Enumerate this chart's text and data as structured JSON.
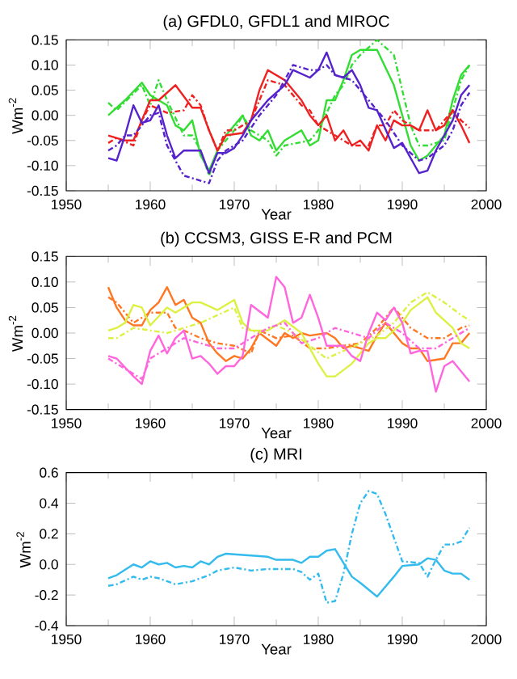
{
  "chart_data": [
    {
      "type": "line",
      "title": "(a) GFDL0, GFDL1 and MIROC",
      "xlabel": "Year",
      "ylabel": "Wm$^{-2}$",
      "xlim": [
        1950,
        2000
      ],
      "xticks": [
        1950,
        1960,
        1970,
        1980,
        1990,
        2000
      ],
      "ylim": [
        -0.15,
        0.15
      ],
      "yticks": [
        {
          "value": -0.15,
          "label": "-0.15"
        },
        {
          "value": -0.1,
          "label": "-0.10"
        },
        {
          "value": -0.05,
          "label": "-0.05"
        },
        {
          "value": 0,
          "label": "0.00"
        },
        {
          "value": 0.05,
          "label": "0.05"
        },
        {
          "value": 0.1,
          "label": "0.10"
        },
        {
          "value": 0.15,
          "label": "0.15"
        }
      ],
      "series": [
        {
          "color": "#33dd33",
          "line_style": "solid",
          "x": [
            1955,
            1957,
            1959,
            1960,
            1962,
            1963,
            1964,
            1965,
            1966,
            1967,
            1968,
            1969,
            1971,
            1972,
            1973,
            1974,
            1975,
            1976,
            1978,
            1979,
            1980,
            1981,
            1982,
            1983,
            1984,
            1985,
            1987,
            1989,
            1990,
            1991,
            1992,
            1993,
            1995,
            1996,
            1997,
            1998
          ],
          "values": [
            0.0,
            0.03,
            0.065,
            0.04,
            0.02,
            -0.02,
            -0.03,
            -0.01,
            -0.08,
            -0.11,
            -0.07,
            -0.04,
            0.0,
            -0.04,
            -0.05,
            -0.03,
            -0.07,
            -0.05,
            -0.03,
            -0.06,
            -0.05,
            0.03,
            0.03,
            0.07,
            0.12,
            0.13,
            0.13,
            0.06,
            0.0,
            -0.06,
            -0.09,
            -0.08,
            -0.04,
            0.03,
            0.08,
            0.1
          ]
        },
        {
          "color": "#33dd33",
          "line_style": "dashed",
          "x": [
            1955,
            1956,
            1959,
            1960,
            1961,
            1962,
            1964,
            1965,
            1966,
            1967,
            1968,
            1970,
            1971,
            1972,
            1974,
            1975,
            1976,
            1979,
            1980,
            1982,
            1983,
            1984,
            1985,
            1987,
            1989,
            1990,
            1991,
            1992,
            1993,
            1995,
            1996,
            1997,
            1998
          ],
          "values": [
            0.025,
            0.01,
            0.06,
            0.02,
            0.07,
            0.03,
            -0.04,
            -0.04,
            -0.07,
            -0.12,
            -0.07,
            -0.03,
            0.0,
            -0.03,
            -0.05,
            -0.08,
            -0.06,
            -0.05,
            -0.03,
            0.04,
            0.06,
            0.1,
            0.12,
            0.15,
            0.12,
            0.05,
            -0.02,
            -0.06,
            -0.06,
            -0.05,
            0.01,
            0.07,
            0.1
          ]
        },
        {
          "color": "#ee2222",
          "line_style": "solid",
          "x": [
            1955,
            1957,
            1958,
            1959,
            1960,
            1961,
            1963,
            1965,
            1966,
            1967,
            1968,
            1969,
            1971,
            1972,
            1973,
            1974,
            1976,
            1978,
            1979,
            1980,
            1981,
            1982,
            1983,
            1984,
            1985,
            1986,
            1987,
            1988,
            1989,
            1990,
            1991,
            1992,
            1993,
            1994,
            1995,
            1996,
            1997,
            1998
          ],
          "values": [
            -0.04,
            -0.05,
            -0.05,
            -0.01,
            0.03,
            0.03,
            0.06,
            0.015,
            0.015,
            -0.03,
            -0.07,
            -0.04,
            -0.035,
            -0.01,
            0.05,
            0.09,
            0.07,
            0.03,
            0.0,
            -0.02,
            0.0,
            -0.05,
            -0.03,
            -0.06,
            -0.05,
            -0.07,
            -0.02,
            -0.05,
            -0.01,
            -0.02,
            -0.02,
            -0.03,
            0.01,
            -0.03,
            -0.02,
            0.01,
            -0.02,
            -0.055
          ]
        },
        {
          "color": "#ee2222",
          "line_style": "dashed",
          "x": [
            1955,
            1956,
            1958,
            1959,
            1960,
            1962,
            1964,
            1965,
            1966,
            1967,
            1968,
            1969,
            1970,
            1972,
            1973,
            1974,
            1976,
            1978,
            1979,
            1980,
            1982,
            1984,
            1986,
            1987,
            1988,
            1989,
            1990,
            1992,
            1994,
            1996,
            1997,
            1998
          ],
          "values": [
            -0.055,
            -0.045,
            -0.06,
            -0.01,
            0.02,
            0.005,
            0.01,
            0.04,
            0.02,
            -0.03,
            -0.07,
            -0.03,
            -0.03,
            -0.01,
            0.03,
            0.07,
            0.06,
            0.02,
            0.01,
            -0.02,
            -0.04,
            -0.06,
            -0.06,
            -0.02,
            -0.02,
            0.01,
            -0.01,
            -0.03,
            -0.03,
            0.01,
            -0.01,
            -0.025
          ]
        },
        {
          "color": "#5522cc",
          "line_style": "solid",
          "x": [
            1955,
            1956,
            1957,
            1958,
            1959,
            1960,
            1961,
            1962,
            1963,
            1964,
            1966,
            1967,
            1968,
            1969,
            1970,
            1971,
            1972,
            1974,
            1976,
            1977,
            1979,
            1980,
            1981,
            1982,
            1983,
            1984,
            1985,
            1986,
            1987,
            1989,
            1990,
            1992,
            1993,
            1994,
            1996,
            1997,
            1998
          ],
          "values": [
            -0.085,
            -0.09,
            -0.04,
            0.02,
            -0.015,
            -0.01,
            0.02,
            -0.04,
            -0.085,
            -0.07,
            -0.07,
            -0.115,
            -0.075,
            -0.075,
            -0.065,
            -0.04,
            -0.01,
            0.03,
            0.06,
            0.09,
            0.075,
            0.09,
            0.125,
            0.08,
            0.075,
            0.09,
            0.06,
            0.015,
            0.01,
            -0.065,
            -0.055,
            -0.115,
            -0.11,
            -0.07,
            -0.01,
            0.04,
            0.06
          ]
        },
        {
          "color": "#5522cc",
          "line_style": "dashed",
          "x": [
            1955,
            1956,
            1957,
            1958,
            1960,
            1961,
            1962,
            1963,
            1964,
            1966,
            1967,
            1968,
            1969,
            1970,
            1971,
            1973,
            1975,
            1976,
            1977,
            1979,
            1980,
            1981,
            1982,
            1984,
            1986,
            1988,
            1990,
            1992,
            1993,
            1995,
            1996,
            1997,
            1998
          ],
          "values": [
            -0.07,
            -0.06,
            -0.04,
            -0.04,
            0.0,
            0.005,
            -0.06,
            -0.09,
            -0.12,
            -0.13,
            -0.135,
            -0.09,
            -0.07,
            -0.06,
            -0.05,
            0.0,
            0.04,
            0.07,
            0.1,
            0.09,
            0.09,
            0.1,
            0.08,
            0.07,
            0.03,
            -0.01,
            -0.06,
            -0.09,
            -0.085,
            -0.06,
            -0.03,
            0.02,
            0.045
          ]
        }
      ]
    },
    {
      "type": "line",
      "title": "(b) CCSM3, GISS E-R and PCM",
      "xlabel": "Year",
      "ylabel": "Wm$^{-2}$",
      "xlim": [
        1950,
        2000
      ],
      "xticks": [
        1950,
        1960,
        1970,
        1980,
        1990,
        2000
      ],
      "ylim": [
        -0.15,
        0.15
      ],
      "yticks": [
        {
          "value": -0.15,
          "label": "-0.15"
        },
        {
          "value": -0.1,
          "label": "-0.10"
        },
        {
          "value": -0.05,
          "label": "-0.05"
        },
        {
          "value": 0,
          "label": "0.00"
        },
        {
          "value": 0.05,
          "label": "0.05"
        },
        {
          "value": 0.1,
          "label": "0.10"
        },
        {
          "value": 0.15,
          "label": "0.15"
        }
      ],
      "series": [
        {
          "color": "#ff7722",
          "line_style": "solid",
          "x": [
            1955,
            1956,
            1957,
            1958,
            1959,
            1960,
            1961,
            1962,
            1963,
            1964,
            1965,
            1966,
            1967,
            1968,
            1969,
            1970,
            1971,
            1972,
            1973,
            1975,
            1976,
            1977,
            1978,
            1979,
            1981,
            1982,
            1983,
            1984,
            1985,
            1986,
            1987,
            1988,
            1989,
            1990,
            1991,
            1992,
            1993,
            1995,
            1996,
            1997,
            1998
          ],
          "values": [
            0.09,
            0.05,
            0.025,
            0.015,
            0.015,
            0.045,
            0.06,
            0.09,
            0.055,
            0.065,
            0.03,
            0.02,
            -0.02,
            -0.04,
            -0.055,
            -0.045,
            -0.05,
            -0.03,
            0.0,
            -0.025,
            0.0,
            -0.01,
            0.0,
            -0.005,
            0.0,
            -0.01,
            -0.03,
            -0.025,
            -0.03,
            -0.035,
            -0.005,
            0.02,
            0.0,
            -0.02,
            -0.03,
            -0.03,
            -0.055,
            -0.05,
            -0.02,
            -0.02,
            0.0
          ]
        },
        {
          "color": "#ff7722",
          "line_style": "dashed",
          "x": [
            1955,
            1956,
            1958,
            1960,
            1962,
            1963,
            1964,
            1966,
            1968,
            1970,
            1972,
            1973,
            1975,
            1977,
            1979,
            1981,
            1983,
            1985,
            1987,
            1989,
            1991,
            1993,
            1995,
            1997,
            1998
          ],
          "values": [
            0.07,
            0.06,
            0.02,
            0.04,
            0.04,
            0.01,
            0.005,
            -0.01,
            -0.02,
            -0.025,
            -0.04,
            0.005,
            -0.01,
            -0.005,
            -0.03,
            -0.03,
            -0.025,
            -0.02,
            0.01,
            0.05,
            0.01,
            -0.01,
            -0.01,
            0.01,
            0.015
          ]
        },
        {
          "color": "#ddf044",
          "line_style": "solid",
          "x": [
            1955,
            1956,
            1957,
            1958,
            1959,
            1960,
            1962,
            1963,
            1965,
            1966,
            1968,
            1970,
            1971,
            1972,
            1974,
            1976,
            1978,
            1980,
            1981,
            1982,
            1984,
            1986,
            1987,
            1988,
            1990,
            1991,
            1993,
            1994,
            1996,
            1997,
            1998
          ],
          "values": [
            0.005,
            0.01,
            0.02,
            0.055,
            0.05,
            0.015,
            0.05,
            0.04,
            0.06,
            0.06,
            0.045,
            0.065,
            0.02,
            0.005,
            0.005,
            0.025,
            0.0,
            -0.06,
            -0.085,
            -0.085,
            -0.06,
            -0.02,
            -0.01,
            -0.01,
            0.02,
            0.045,
            0.07,
            0.04,
            0.01,
            -0.02,
            -0.03
          ]
        },
        {
          "color": "#ddf044",
          "line_style": "dashed",
          "x": [
            1955,
            1956,
            1958,
            1960,
            1962,
            1964,
            1966,
            1968,
            1970,
            1971,
            1973,
            1975,
            1977,
            1979,
            1981,
            1983,
            1985,
            1987,
            1989,
            1991,
            1993,
            1995,
            1997,
            1998
          ],
          "values": [
            -0.01,
            -0.01,
            0.01,
            0.005,
            0.0,
            0.01,
            0.02,
            0.035,
            0.05,
            0.01,
            0.0,
            0.015,
            0.0,
            -0.025,
            -0.05,
            -0.035,
            -0.02,
            -0.005,
            0.02,
            0.06,
            0.08,
            0.06,
            0.035,
            0.025
          ]
        },
        {
          "color": "#ff66dd",
          "line_style": "solid",
          "x": [
            1955,
            1956,
            1958,
            1959,
            1960,
            1961,
            1962,
            1963,
            1964,
            1965,
            1966,
            1967,
            1968,
            1969,
            1970,
            1971,
            1972,
            1974,
            1975,
            1976,
            1977,
            1978,
            1979,
            1980,
            1981,
            1983,
            1984,
            1985,
            1986,
            1987,
            1988,
            1989,
            1990,
            1991,
            1992,
            1993,
            1994,
            1995,
            1996,
            1998
          ],
          "values": [
            -0.045,
            -0.05,
            -0.085,
            -0.1,
            -0.035,
            -0.005,
            -0.04,
            -0.01,
            0.005,
            -0.05,
            -0.045,
            -0.06,
            -0.08,
            -0.065,
            -0.065,
            -0.045,
            0.055,
            0.03,
            0.11,
            0.09,
            0.02,
            0.03,
            0.075,
            0.03,
            -0.025,
            -0.025,
            -0.045,
            -0.055,
            0.0,
            0.04,
            0.025,
            0.05,
            0.02,
            -0.04,
            -0.035,
            -0.035,
            -0.115,
            -0.065,
            -0.055,
            -0.095
          ]
        },
        {
          "color": "#ff66dd",
          "line_style": "dashed",
          "x": [
            1955,
            1957,
            1959,
            1960,
            1962,
            1964,
            1966,
            1968,
            1970,
            1972,
            1974,
            1976,
            1978,
            1980,
            1982,
            1984,
            1986,
            1988,
            1990,
            1992,
            1994,
            1996,
            1998
          ],
          "values": [
            -0.05,
            -0.07,
            -0.09,
            -0.05,
            -0.03,
            -0.01,
            -0.02,
            -0.03,
            -0.03,
            -0.01,
            0.01,
            0.02,
            -0.02,
            -0.01,
            0.01,
            0.0,
            -0.01,
            0.02,
            0.0,
            -0.03,
            -0.03,
            -0.01,
            0.01
          ]
        }
      ]
    },
    {
      "type": "line",
      "title": "(c) MRI",
      "xlabel": "Year",
      "ylabel": "Wm$^{-2}$",
      "xlim": [
        1950,
        2000
      ],
      "xticks": [
        1950,
        1960,
        1970,
        1980,
        1990,
        2000
      ],
      "ylim": [
        -0.4,
        0.6
      ],
      "yticks": [
        {
          "value": -0.4,
          "label": "-0.4"
        },
        {
          "value": -0.2,
          "label": "-0.2"
        },
        {
          "value": 0,
          "label": "0.0"
        },
        {
          "value": 0.2,
          "label": "0.2"
        },
        {
          "value": 0.4,
          "label": "0.4"
        },
        {
          "value": 0.6,
          "label": "0.6"
        }
      ],
      "series": [
        {
          "color": "#33bbee",
          "line_style": "solid",
          "x": [
            1955,
            1956,
            1958,
            1959,
            1960,
            1961,
            1962,
            1963,
            1964,
            1965,
            1966,
            1967,
            1968,
            1969,
            1974,
            1975,
            1977,
            1978,
            1979,
            1980,
            1981,
            1982,
            1984,
            1985,
            1987,
            1989,
            1990,
            1992,
            1993,
            1994,
            1995,
            1996,
            1997,
            1998
          ],
          "values": [
            -0.09,
            -0.07,
            0.0,
            -0.02,
            0.02,
            0.0,
            0.01,
            -0.02,
            -0.01,
            -0.02,
            0.02,
            0.0,
            0.05,
            0.07,
            0.05,
            0.03,
            0.03,
            0.01,
            0.05,
            0.05,
            0.09,
            0.1,
            -0.08,
            -0.12,
            -0.21,
            -0.08,
            -0.01,
            0.0,
            0.04,
            0.03,
            -0.04,
            -0.06,
            -0.06,
            -0.1
          ]
        },
        {
          "color": "#33bbee",
          "line_style": "dashed",
          "x": [
            1955,
            1956,
            1958,
            1959,
            1960,
            1961,
            1963,
            1965,
            1966,
            1967,
            1968,
            1970,
            1972,
            1974,
            1977,
            1978,
            1979,
            1980,
            1981,
            1982,
            1983,
            1984,
            1985,
            1986,
            1987,
            1988,
            1990,
            1992,
            1993,
            1994,
            1995,
            1996,
            1997,
            1998
          ],
          "values": [
            -0.14,
            -0.13,
            -0.08,
            -0.1,
            -0.08,
            -0.09,
            -0.13,
            -0.11,
            -0.09,
            -0.07,
            -0.04,
            -0.02,
            -0.04,
            -0.03,
            -0.03,
            -0.05,
            -0.1,
            -0.06,
            -0.25,
            -0.24,
            -0.06,
            0.2,
            0.4,
            0.48,
            0.46,
            0.33,
            0.02,
            0.01,
            -0.08,
            0.03,
            0.13,
            0.13,
            0.15,
            0.24
          ]
        }
      ]
    }
  ]
}
